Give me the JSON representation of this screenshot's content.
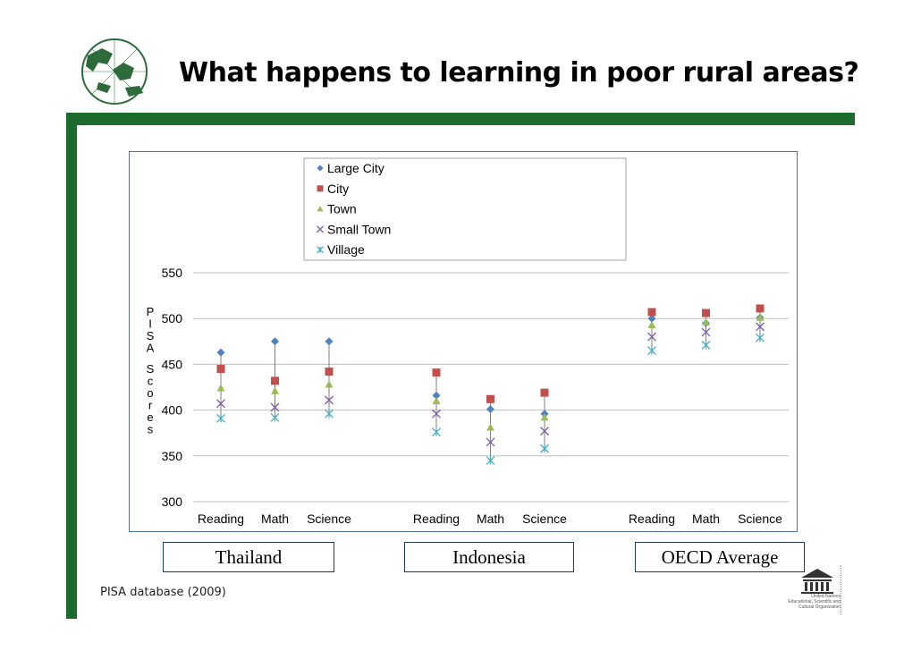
{
  "slide": {
    "title": "What happens to learning in poor rural areas?",
    "source": "PISA database (2009)",
    "colors": {
      "band": "#1e6b2e",
      "legend_border": "#1f3864"
    }
  },
  "countries": [
    "Thailand",
    "Indonesia",
    "OECD Average"
  ],
  "logos": {
    "unesco_text": [
      "United Nations",
      "Educational, Scientific and",
      "Cultural Organization"
    ]
  },
  "chart_data": {
    "type": "scatter",
    "ylabel": "PISA Scores",
    "ylim": [
      300,
      550
    ],
    "yticks": [
      300,
      350,
      400,
      450,
      500,
      550
    ],
    "grid": true,
    "legend_position": "top-center",
    "groups": [
      {
        "name": "Thailand",
        "categories": [
          "Reading",
          "Math",
          "Science"
        ]
      },
      {
        "name": "Indonesia",
        "categories": [
          "Reading",
          "Math",
          "Science"
        ]
      },
      {
        "name": "OECD Average",
        "categories": [
          "Reading",
          "Math",
          "Science"
        ]
      }
    ],
    "series": [
      {
        "name": "Large City",
        "marker": "diamond",
        "color": "#4f81bd",
        "values": [
          463,
          475,
          475,
          416,
          401,
          396,
          500,
          495,
          501
        ]
      },
      {
        "name": "City",
        "marker": "square",
        "color": "#c0504d",
        "values": [
          445,
          432,
          442,
          441,
          412,
          419,
          507,
          506,
          511
        ]
      },
      {
        "name": "Town",
        "marker": "triangle",
        "color": "#9bbb59",
        "values": [
          424,
          421,
          428,
          410,
          381,
          392,
          493,
          496,
          501
        ]
      },
      {
        "name": "Small Town",
        "marker": "x",
        "color": "#8064a2",
        "values": [
          407,
          403,
          411,
          396,
          365,
          377,
          480,
          485,
          491
        ]
      },
      {
        "name": "Village",
        "marker": "star",
        "color": "#4bacc6",
        "values": [
          391,
          392,
          396,
          376,
          345,
          358,
          465,
          471,
          479
        ]
      }
    ]
  }
}
